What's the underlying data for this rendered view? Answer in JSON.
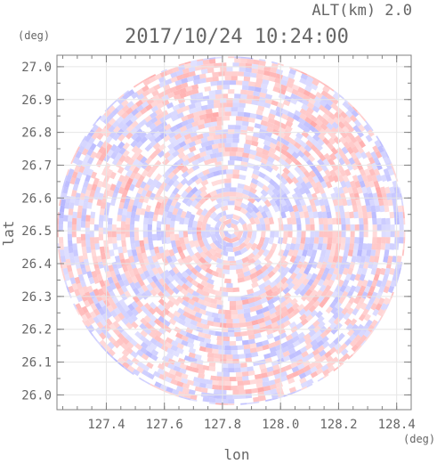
{
  "chart_data": {
    "type": "heatmap",
    "field": "radial",
    "title": "2017/10/24 10:24:00",
    "altitude_label": "ALT(km) 2.0",
    "xlabel": "lon",
    "ylabel": "lat",
    "x_unit": "(deg)",
    "y_unit": "(deg)",
    "xlim": [
      127.23,
      128.45
    ],
    "ylim": [
      25.955,
      27.035
    ],
    "x_ticks": [
      "127.4",
      "127.6",
      "127.8",
      "128.0",
      "128.2",
      "128.4"
    ],
    "y_ticks": [
      "26.0",
      "26.1",
      "26.2",
      "26.3",
      "26.4",
      "26.5",
      "26.6",
      "26.7",
      "26.8",
      "26.9",
      "27.0"
    ],
    "center": {
      "lon": 127.83,
      "lat": 26.5
    },
    "radius_deg": 0.6,
    "colors": {
      "positive": "#ff9a9a",
      "negative": "#a8a8ff",
      "neutral": "#ffffff",
      "axis": "#808080",
      "text": "#666666"
    }
  }
}
